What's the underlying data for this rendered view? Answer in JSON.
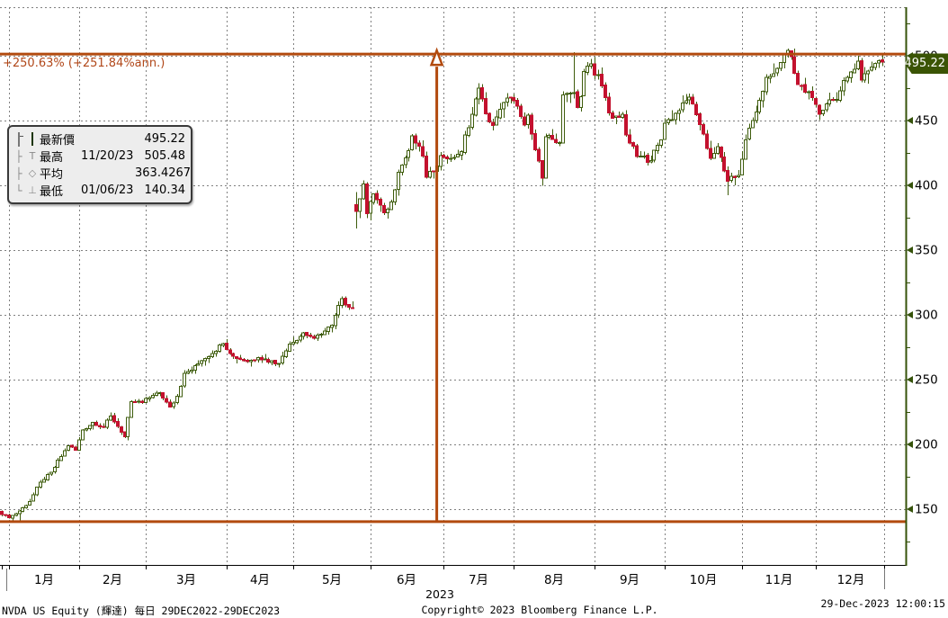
{
  "annotation": {
    "change_label": "+250.63% (+251.84%ann.)"
  },
  "legend": {
    "rows": [
      {
        "tree": "",
        "glyph": "",
        "label": "最新價",
        "date": "",
        "value": "495.22"
      },
      {
        "tree": "├",
        "glyph": "T",
        "label": "最高",
        "date": "11/20/23",
        "value": "505.48"
      },
      {
        "tree": "├",
        "glyph": "◇",
        "label": "平均",
        "date": "",
        "value": "363.4267"
      },
      {
        "tree": "└",
        "glyph": "⊥",
        "label": "最低",
        "date": "01/06/23",
        "value": "140.34"
      }
    ]
  },
  "axis": {
    "y_ticks": [
      500,
      450,
      400,
      350,
      300,
      250,
      200,
      150
    ],
    "y_minor_step": 25,
    "x_months": [
      "1月",
      "2月",
      "3月",
      "4月",
      "5月",
      "6月",
      "7月",
      "8月",
      "9月",
      "10月",
      "11月",
      "12月"
    ],
    "year_label": "2023",
    "badge_value": "495.22"
  },
  "footer": {
    "left": "NVDA US Equity (輝達)  每日 29DEC2022-29DEC2023",
    "center": "Copyright© 2023 Bloomberg Finance L.P.",
    "right": "29-Dec-2023 12:00:15"
  },
  "colors": {
    "up_fill": "#ffffff",
    "up_outline": "#3e5c0c",
    "down_fill": "#c3112e",
    "wick": "#3e5c0c",
    "track_line": "#b24a0e",
    "axis_line": "#35520a",
    "grid": "#808080",
    "badge_bg": "#3a5404",
    "badge_text": "#ffffff",
    "annotation_text": "#b1481a",
    "legend_bg": "#ededed",
    "legend_swatch": "#315a04"
  },
  "chart_data": {
    "type": "candlestick",
    "title": "NVDA US Equity (輝達) daily candlestick 29DEC2022-29DEC2023",
    "x_range": [
      "29DEC2022",
      "29DEC2023"
    ],
    "y_axis_range": [
      125,
      537
    ],
    "grid": true,
    "stats": {
      "latest": 495.22,
      "high": {
        "date": "11/20/23",
        "value": 505.48
      },
      "average": 363.4267,
      "low": {
        "date": "01/06/23",
        "value": 140.34
      },
      "change_pct": 250.63,
      "change_pct_annualized": 251.84
    },
    "total_days": 252,
    "month_start_days": [
      2,
      22,
      41,
      64,
      83,
      105,
      126,
      146,
      169,
      189,
      211,
      232
    ],
    "anchors": [
      [
        0,
        146.0
      ],
      [
        2,
        143.2
      ],
      [
        5,
        148.5
      ],
      [
        8,
        156.0
      ],
      [
        11,
        171.0
      ],
      [
        14,
        178.4
      ],
      [
        19,
        199.0
      ],
      [
        21,
        195.4
      ],
      [
        23,
        211.0
      ],
      [
        26,
        217.0
      ],
      [
        29,
        213.0
      ],
      [
        31,
        222.0
      ],
      [
        35,
        206.0
      ],
      [
        37,
        233.0
      ],
      [
        40,
        232.2
      ],
      [
        43,
        238.0
      ],
      [
        45,
        240.0
      ],
      [
        48,
        229.0
      ],
      [
        50,
        237.0
      ],
      [
        52,
        255.0
      ],
      [
        54,
        257.3
      ],
      [
        57,
        264.7
      ],
      [
        63,
        277.8
      ],
      [
        66,
        268.0
      ],
      [
        70,
        264.0
      ],
      [
        73,
        267.0
      ],
      [
        79,
        262.4
      ],
      [
        82,
        277.5
      ],
      [
        86,
        286.0
      ],
      [
        89,
        282.0
      ],
      [
        91,
        284.9
      ],
      [
        94,
        292.1
      ],
      [
        97,
        312.6
      ],
      [
        99,
        306.0
      ],
      [
        100,
        305.4
      ],
      [
        101,
        379.8
      ],
      [
        102,
        389.5
      ],
      [
        103,
        401.1
      ],
      [
        104,
        378.3
      ],
      [
        106,
        393.3
      ],
      [
        109,
        378.8
      ],
      [
        111,
        387.0
      ],
      [
        113,
        410.2
      ],
      [
        116,
        426.9
      ],
      [
        117,
        438.1
      ],
      [
        120,
        422.7
      ],
      [
        121,
        406.3
      ],
      [
        123,
        411.2
      ],
      [
        125,
        423.0
      ],
      [
        128,
        421.0
      ],
      [
        131,
        426.0
      ],
      [
        132,
        439.0
      ],
      [
        134,
        454.7
      ],
      [
        136,
        475.0
      ],
      [
        138,
        455.2
      ],
      [
        140,
        446.1
      ],
      [
        144,
        467.5
      ],
      [
        145,
        467.3
      ],
      [
        146,
        465.1
      ],
      [
        149,
        446.6
      ],
      [
        150,
        454.2
      ],
      [
        154,
        405.6
      ],
      [
        155,
        437.5
      ],
      [
        159,
        433.0
      ],
      [
        160,
        469.7
      ],
      [
        162,
        471.2
      ],
      [
        163,
        471.6
      ],
      [
        164,
        460.2
      ],
      [
        165,
        468.4
      ],
      [
        166,
        487.8
      ],
      [
        168,
        493.6
      ],
      [
        169,
        485.1
      ],
      [
        170,
        485.5
      ],
      [
        173,
        455.8
      ],
      [
        174,
        451.8
      ],
      [
        177,
        455.0
      ],
      [
        178,
        439.0
      ],
      [
        181,
        422.4
      ],
      [
        185,
        419.1
      ],
      [
        187,
        430.9
      ],
      [
        188,
        435.0
      ],
      [
        189,
        447.8
      ],
      [
        193,
        457.6
      ],
      [
        196,
        468.1
      ],
      [
        198,
        454.6
      ],
      [
        200,
        439.4
      ],
      [
        202,
        421.0
      ],
      [
        204,
        429.8
      ],
      [
        207,
        403.3
      ],
      [
        210,
        407.8
      ],
      [
        212,
        435.1
      ],
      [
        214,
        450.1
      ],
      [
        216,
        465.7
      ],
      [
        218,
        483.4
      ],
      [
        220,
        486.2
      ],
      [
        222,
        494.8
      ],
      [
        224,
        504.1
      ],
      [
        225,
        499.4
      ],
      [
        227,
        477.8
      ],
      [
        231,
        467.7
      ],
      [
        233,
        455.0
      ],
      [
        236,
        466.0
      ],
      [
        238,
        466.3
      ],
      [
        240,
        480.9
      ],
      [
        241,
        483.5
      ],
      [
        244,
        496.0
      ],
      [
        245,
        481.4
      ],
      [
        247,
        488.3
      ],
      [
        249,
        494.2
      ],
      [
        251,
        495.22
      ]
    ],
    "special_days": {
      "5": {
        "low": 140.34
      },
      "101": {
        "open": 385.0,
        "high": 394.8,
        "low": 366.5
      },
      "163": {
        "high": 502.66
      },
      "207": {
        "low": 392.3
      },
      "224": {
        "high": 505.48
      }
    },
    "track_lines": {
      "high": 505.48,
      "low": 140.34,
      "marker_day": 124
    }
  }
}
